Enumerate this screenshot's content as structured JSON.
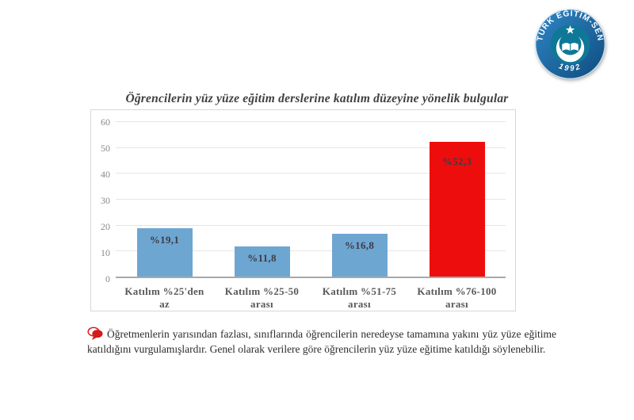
{
  "logo": {
    "name": "TÜRK EĞİTİM-SEN",
    "year": "1992",
    "colors": {
      "ring_light": "#2f87c7",
      "ring_dark": "#0f4c7e",
      "rim": "#cfe3f2",
      "inner": "#0f7898",
      "emblem": "#ffffff"
    }
  },
  "note": {
    "text": "Öğretmenlerin yarısından fazlası, sınıflarında öğrencilerin neredeyse tamamına yakını yüz yüze eğitime katıldığını vurgulamışlardır. Genel olarak verilere göre öğrencilerin yüz yüze eğitime katıldığı söylenebilir.",
    "icon_color": "#d41b1b"
  },
  "chart_data": {
    "type": "bar",
    "title": "Öğrencilerin yüz yüze eğitim derslerine katılım düzeyine yönelik bulgular",
    "categories": [
      "Katılım %25'den az",
      "Katılım %25-50 arası",
      "Katılım %51-75 arası",
      "Katılım %76-100 arası"
    ],
    "values": [
      19.1,
      11.8,
      16.8,
      52.3
    ],
    "labels": [
      "%19,1",
      "%11,8",
      "%16,8",
      "%52,3"
    ],
    "bar_colors": [
      "#6ea6d2",
      "#6ea6d2",
      "#6ea6d2",
      "#ee0d0d"
    ],
    "xlabel": "",
    "ylabel": "",
    "ylim": [
      0,
      60
    ],
    "yticks": [
      0,
      10,
      20,
      30,
      40,
      50,
      60
    ],
    "grid": true,
    "legend": false
  }
}
